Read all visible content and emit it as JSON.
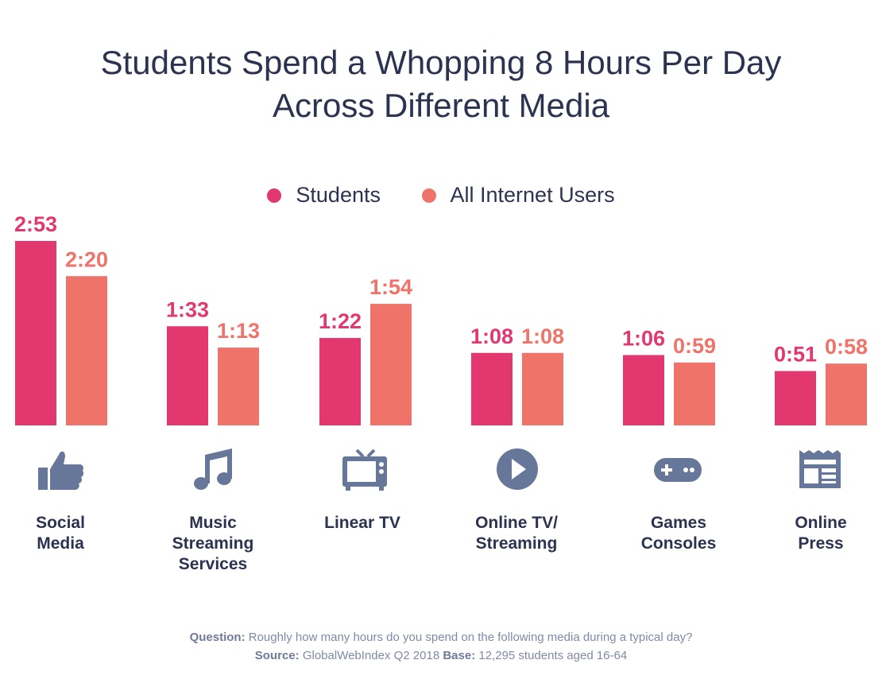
{
  "title_line1": "Students Spend a Whopping 8 Hours Per Day",
  "title_line2": "Across Different Media",
  "legend": [
    {
      "label": "Students",
      "color": "#e3386f"
    },
    {
      "label": "All Internet Users",
      "color": "#f0736a"
    }
  ],
  "icon_color": "#667799",
  "chart_data": {
    "type": "bar",
    "categories": [
      "Social Media",
      "Music Streaming Services",
      "Linear TV",
      "Online TV/ Streaming",
      "Games Consoles",
      "Online Press"
    ],
    "category_lines": [
      [
        "Social",
        "Media"
      ],
      [
        "Music",
        "Streaming",
        "Services"
      ],
      [
        "Linear TV"
      ],
      [
        "Online TV/",
        "Streaming"
      ],
      [
        "Games",
        "Consoles"
      ],
      [
        "Online",
        "Press"
      ]
    ],
    "icons": [
      "thumbs-up-icon",
      "music-note-icon",
      "tv-icon",
      "play-icon",
      "gamepad-icon",
      "newspaper-icon"
    ],
    "series": [
      {
        "name": "Students",
        "color": "#e3386f",
        "values": [
          173,
          93,
          82,
          68,
          66,
          51
        ],
        "labels": [
          "2:53",
          "1:33",
          "1:22",
          "1:08",
          "1:06",
          "0:51"
        ]
      },
      {
        "name": "All Internet Users",
        "color": "#f0736a",
        "values": [
          140,
          73,
          114,
          68,
          59,
          58
        ],
        "labels": [
          "2:20",
          "1:13",
          "1:54",
          "1:08",
          "0:59",
          "0:58"
        ]
      }
    ],
    "value_unit": "minutes per day",
    "title": "Students Spend a Whopping 8 Hours Per Day Across Different Media",
    "grid": false,
    "legend_position": "top-center"
  },
  "footnote": {
    "question_label": "Question:",
    "question_text": "Roughly how many hours do you spend on the following media during a typical day?",
    "source_label": "Source:",
    "source_text": "GlobalWebIndex Q2 2018",
    "base_label": "Base:",
    "base_text": "12,295 students aged 16-64"
  }
}
